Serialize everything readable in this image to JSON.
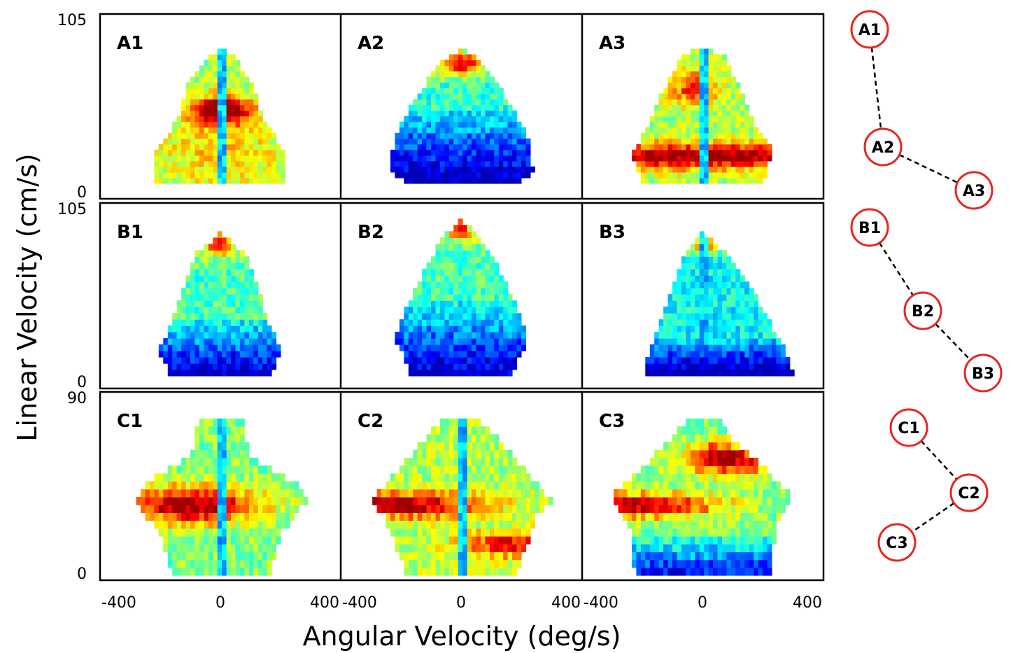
{
  "chart_data": {
    "type": "heatmap",
    "xlabel": "Angular Velocity (deg/s)",
    "ylabel": "Linear Velocity (cm/s)",
    "xlim": [
      -400,
      400
    ],
    "x_tick_labels": [
      "-400",
      "0",
      "400"
    ],
    "colormap": "jet",
    "rows": [
      {
        "y_tick_labels": [
          "105",
          "0"
        ],
        "ylim": [
          0,
          105
        ]
      },
      {
        "y_tick_labels": [
          "105",
          "0"
        ],
        "ylim": [
          0,
          105
        ]
      },
      {
        "y_tick_labels": [
          "90",
          "0"
        ],
        "ylim": [
          0,
          90
        ]
      }
    ],
    "panels": [
      {
        "label": "A1",
        "row": 0,
        "col": 0,
        "profile": [
          [
            0,
            -220
          ],
          [
            20,
            -215
          ],
          [
            42,
            -140
          ],
          [
            65,
            -105
          ],
          [
            82,
            -40
          ],
          [
            86,
            0
          ]
        ],
        "right_scale": 1.0,
        "base": 0.52,
        "lowfrac": 0,
        "hot": [
          [
            0.42,
            0.55,
            0.28,
            0.09,
            0.35
          ],
          [
            0.62,
            0.55,
            0.3,
            0.09,
            0.35
          ],
          [
            0.5,
            0.3,
            0.6,
            0.4,
            0.15
          ]
        ],
        "ridge": 1
      },
      {
        "label": "A2",
        "row": 0,
        "col": 1,
        "profile": [
          [
            0,
            -185
          ],
          [
            8,
            -235
          ],
          [
            28,
            -225
          ],
          [
            48,
            -170
          ],
          [
            66,
            -110
          ],
          [
            80,
            -55
          ],
          [
            86,
            0
          ]
        ],
        "right_scale": 1.02,
        "base": 0.42,
        "lowfrac": 0.55,
        "hot": [
          [
            0.5,
            0.9,
            0.55,
            0.09,
            0.5
          ]
        ],
        "ridge": 0
      },
      {
        "label": "A3",
        "row": 0,
        "col": 2,
        "profile": [
          [
            0,
            -200
          ],
          [
            20,
            -235
          ],
          [
            38,
            -175
          ],
          [
            60,
            -130
          ],
          [
            82,
            -70
          ],
          [
            88,
            0
          ]
        ],
        "right_scale": 1.0,
        "base": 0.55,
        "lowfrac": 0,
        "hot": [
          [
            0.15,
            0.2,
            0.45,
            0.09,
            0.4
          ],
          [
            0.85,
            0.2,
            0.45,
            0.09,
            0.4
          ],
          [
            0.4,
            0.7,
            0.3,
            0.12,
            0.3
          ]
        ],
        "ridge": 1
      },
      {
        "label": "B1",
        "row": 1,
        "col": 0,
        "profile": [
          [
            0,
            -165
          ],
          [
            15,
            -205
          ],
          [
            28,
            -165
          ],
          [
            52,
            -120
          ],
          [
            70,
            -80
          ],
          [
            82,
            0
          ]
        ],
        "right_scale": 1.0,
        "base": 0.45,
        "lowfrac": 0.4,
        "hot": [
          [
            0.5,
            0.92,
            0.45,
            0.08,
            0.45
          ]
        ],
        "ridge": 0
      },
      {
        "label": "B2",
        "row": 1,
        "col": 1,
        "profile": [
          [
            0,
            -165
          ],
          [
            22,
            -220
          ],
          [
            42,
            -175
          ],
          [
            65,
            -110
          ],
          [
            80,
            -55
          ],
          [
            90,
            0
          ]
        ],
        "right_scale": 1.02,
        "base": 0.45,
        "lowfrac": 0.48,
        "hot": [
          [
            0.5,
            0.94,
            0.45,
            0.07,
            0.5
          ]
        ],
        "ridge": 0
      },
      {
        "label": "B3",
        "row": 1,
        "col": 2,
        "profile": [
          [
            0,
            -200
          ],
          [
            15,
            -175
          ],
          [
            45,
            -115
          ],
          [
            65,
            -70
          ],
          [
            78,
            -20
          ],
          [
            82,
            0
          ]
        ],
        "right_scale": 1.55,
        "base": 0.38,
        "lowfrac": 0.25,
        "hot": [
          [
            0.5,
            0.93,
            0.45,
            0.07,
            0.5
          ]
        ],
        "ridge": 1
      },
      {
        "label": "C1",
        "row": 2,
        "col": 0,
        "profile": [
          [
            0,
            -160
          ],
          [
            20,
            -205
          ],
          [
            34,
            -285
          ],
          [
            42,
            -255
          ],
          [
            55,
            -95
          ],
          [
            72,
            -75
          ]
        ],
        "right_scale": 1.0,
        "base": 0.5,
        "lowfrac": 0,
        "hot": [
          [
            0.32,
            0.45,
            0.42,
            0.12,
            0.5
          ]
        ],
        "ridge": 1
      },
      {
        "label": "C2",
        "row": 2,
        "col": 1,
        "profile": [
          [
            0,
            -180
          ],
          [
            28,
            -255
          ],
          [
            34,
            -300
          ],
          [
            42,
            -250
          ],
          [
            60,
            -140
          ],
          [
            72,
            -55
          ]
        ],
        "right_scale": 1.0,
        "base": 0.55,
        "lowfrac": 0,
        "hot": [
          [
            0.12,
            0.45,
            0.5,
            0.08,
            0.45
          ],
          [
            0.9,
            0.2,
            0.4,
            0.08,
            0.35
          ]
        ],
        "ridge": 1
      },
      {
        "label": "C3",
        "row": 2,
        "col": 2,
        "profile": [
          [
            0,
            -225
          ],
          [
            24,
            -245
          ],
          [
            36,
            -305
          ],
          [
            44,
            -245
          ],
          [
            60,
            -120
          ],
          [
            72,
            -50
          ]
        ],
        "right_scale": 1.0,
        "base": 0.5,
        "lowfrac": 0.25,
        "hot": [
          [
            0.12,
            0.45,
            0.5,
            0.08,
            0.45
          ],
          [
            0.72,
            0.75,
            0.4,
            0.1,
            0.5
          ]
        ],
        "ridge": 0
      }
    ]
  },
  "clusters": [
    {
      "nodes": [
        {
          "label": "A1"
        },
        {
          "label": "A2"
        },
        {
          "label": "A3"
        }
      ]
    },
    {
      "nodes": [
        {
          "label": "B1"
        },
        {
          "label": "B2"
        },
        {
          "label": "B3"
        }
      ]
    },
    {
      "nodes": [
        {
          "label": "C1"
        },
        {
          "label": "C2"
        },
        {
          "label": "C3"
        }
      ]
    }
  ],
  "colors": {
    "circle_stroke": "#e8261f",
    "line": "#000000",
    "frame": "#000000"
  }
}
